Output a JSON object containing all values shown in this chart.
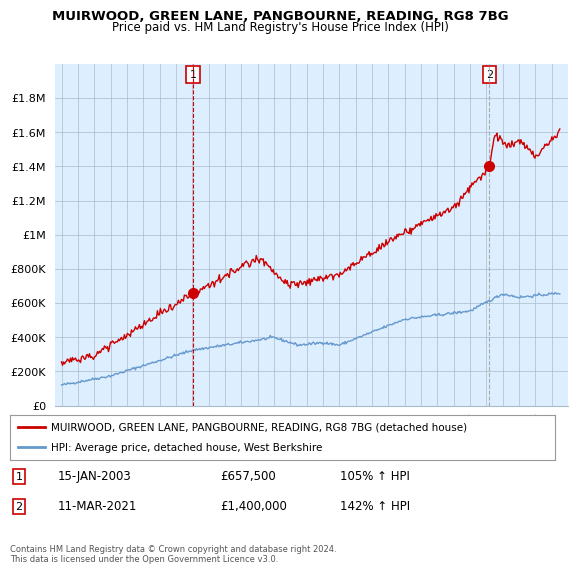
{
  "title_line1": "MUIRWOOD, GREEN LANE, PANGBOURNE, READING, RG8 7BG",
  "title_line2": "Price paid vs. HM Land Registry's House Price Index (HPI)",
  "legend_entry1": "MUIRWOOD, GREEN LANE, PANGBOURNE, READING, RG8 7BG (detached house)",
  "legend_entry2": "HPI: Average price, detached house, West Berkshire",
  "annotation1_label": "1",
  "annotation1_date": "15-JAN-2003",
  "annotation1_price": "£657,500",
  "annotation1_hpi": "105% ↑ HPI",
  "annotation2_label": "2",
  "annotation2_date": "11-MAR-2021",
  "annotation2_price": "£1,400,000",
  "annotation2_hpi": "142% ↑ HPI",
  "footer": "Contains HM Land Registry data © Crown copyright and database right 2024.\nThis data is licensed under the Open Government Licence v3.0.",
  "red_color": "#cc0000",
  "blue_color": "#6699cc",
  "plot_bg_color": "#ddeeff",
  "background_color": "#ffffff",
  "grid_color": "#aabbcc",
  "sale1_year": 2003.04,
  "sale1_value": 657500,
  "sale2_year": 2021.19,
  "sale2_value": 1400000,
  "ylim_max": 2000000,
  "ylim_min": 0
}
